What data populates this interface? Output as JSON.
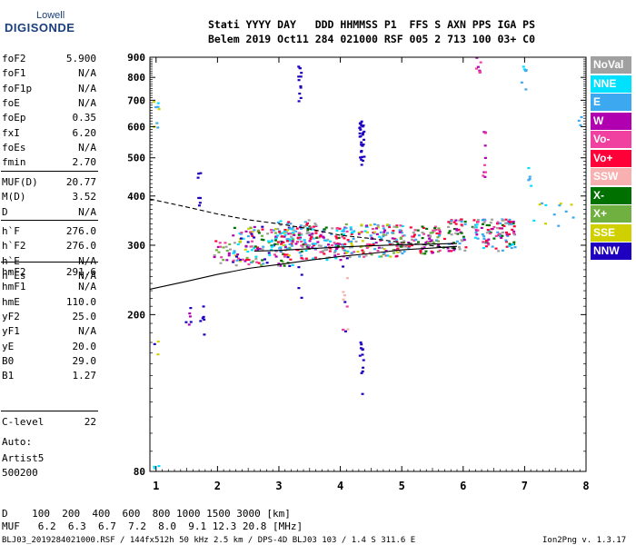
{
  "logo": {
    "line1": "Lowell",
    "line2": "DIGISONDE"
  },
  "header": {
    "line1": "Stati YYYY DAY   DDD HHMMSS P1  FFS S AXN PPS IGA PS",
    "line2": "Belem 2019 Oct11 284 021000 RSF 005 2 713 100 03+ C0"
  },
  "params_group1": [
    {
      "name": "foF2",
      "value": "5.900"
    },
    {
      "name": "foF1",
      "value": "N/A"
    },
    {
      "name": "foF1p",
      "value": "N/A"
    },
    {
      "name": "foE",
      "value": "N/A"
    },
    {
      "name": "foEp",
      "value": "0.35"
    },
    {
      "name": "fxI",
      "value": "6.20"
    },
    {
      "name": "foEs",
      "value": "N/A"
    },
    {
      "name": "fmin",
      "value": "2.70"
    }
  ],
  "params_group2": [
    {
      "name": "MUF(D)",
      "value": "20.77"
    },
    {
      "name": "M(D)",
      "value": "3.52"
    },
    {
      "name": "D",
      "value": "N/A"
    }
  ],
  "params_group3": [
    {
      "name": "h`F",
      "value": "276.0"
    },
    {
      "name": "h`F2",
      "value": "276.0"
    },
    {
      "name": "h`E",
      "value": "N/A"
    },
    {
      "name": "h`Es",
      "value": "N/A"
    }
  ],
  "params_group4": [
    {
      "name": "hmF2",
      "value": "291.6"
    },
    {
      "name": "hmF1",
      "value": "N/A"
    },
    {
      "name": "hmE",
      "value": "110.0"
    },
    {
      "name": "yF2",
      "value": "25.0"
    },
    {
      "name": "yF1",
      "value": "N/A"
    },
    {
      "name": "yE",
      "value": "20.0"
    },
    {
      "name": "B0",
      "value": "29.0"
    },
    {
      "name": "B1",
      "value": "1.27"
    }
  ],
  "params_group5": [
    {
      "name": "C-level",
      "value": "22"
    }
  ],
  "auto_block": {
    "line1": "Auto:",
    "line2": "Artist5",
    "line3": "500200"
  },
  "legend": [
    {
      "label": "NoVal",
      "color": "#a0a0a0"
    },
    {
      "label": "NNE",
      "color": "#00e0ff"
    },
    {
      "label": "E",
      "color": "#3ca8f0"
    },
    {
      "label": "W",
      "color": "#b000b0"
    },
    {
      "label": "Vo-",
      "color": "#f040a0"
    },
    {
      "label": "Vo+",
      "color": "#ff0038"
    },
    {
      "label": "SSW",
      "color": "#f8b0b0"
    },
    {
      "label": "X-",
      "color": "#007000"
    },
    {
      "label": "X+",
      "color": "#70b040"
    },
    {
      "label": "SSE",
      "color": "#d0d000"
    },
    {
      "label": "NNW",
      "color": "#2000c0"
    }
  ],
  "footer": {
    "d_row": "D    100  200  400  600  800 1000 1500 3000 [km]",
    "muf_row": "MUF   6.2  6.3  6.7  7.2  8.0  9.1 12.3 20.8 [MHz]",
    "file_line": "BLJ03_2019284021000.RSF / 144fx512h 50 kHz 2.5 km / DPS-4D BLJ03 103 / 1.4 S 311.6 E",
    "version": "Ion2Png v. 1.3.17"
  },
  "chart_data": {
    "type": "scatter",
    "title": "",
    "xlabel": "",
    "ylabel": "",
    "xlim": [
      0.9,
      8.0
    ],
    "ylim": [
      80,
      900
    ],
    "y_scale": "log",
    "x_ticks": [
      1,
      2,
      3,
      4,
      5,
      6,
      7,
      8
    ],
    "y_ticks": [
      80,
      200,
      300,
      400,
      500,
      600,
      700,
      800,
      900
    ],
    "grid": false,
    "legend_position": "right",
    "curves": [
      {
        "name": "",
        "style": "dashed",
        "x": [
          0.9,
          1.5,
          2.0,
          2.5,
          3.0,
          3.5,
          4.0,
          4.5,
          5.0,
          5.5,
          5.9
        ],
        "y": [
          393,
          375,
          360,
          348,
          340,
          330,
          318,
          312,
          305,
          299,
          294
        ]
      },
      {
        "name": "",
        "style": "solid",
        "x": [
          0.9,
          1.5,
          2.0,
          2.5,
          3.0,
          3.5,
          4.0,
          4.5,
          5.0,
          5.5,
          5.9
        ],
        "y": [
          232,
          243,
          253,
          262,
          268,
          275,
          281,
          286,
          292,
          295,
          298
        ]
      },
      {
        "name": "",
        "style": "solid",
        "x": [
          2.6,
          3.0,
          3.5,
          4.0,
          4.5,
          5.0,
          5.5,
          5.9
        ],
        "y": [
          290,
          291,
          294,
          297,
          299,
          301,
          302,
          303
        ]
      }
    ],
    "echo_clusters": [
      {
        "cx": 1.0,
        "cy": 640,
        "w": 0.05,
        "h": 70,
        "colors": [
          "NNE",
          "E",
          "SSE"
        ],
        "n": 8
      },
      {
        "cx": 1.0,
        "cy": 175,
        "w": 0.05,
        "h": 25,
        "colors": [
          "SSE",
          "NNW"
        ],
        "n": 3
      },
      {
        "cx": 1.0,
        "cy": 83,
        "w": 0.05,
        "h": 6,
        "colors": [
          "SSE",
          "NNE"
        ],
        "n": 3
      },
      {
        "cx": 1.7,
        "cy": 390,
        "w": 0.03,
        "h": 14,
        "colors": [
          "NNW"
        ],
        "n": 4
      },
      {
        "cx": 1.7,
        "cy": 460,
        "w": 0.03,
        "h": 20,
        "colors": [
          "NNW"
        ],
        "n": 3
      },
      {
        "cx": 1.55,
        "cy": 200,
        "w": 0.06,
        "h": 20,
        "colors": [
          "NNW",
          "W"
        ],
        "n": 6
      },
      {
        "cx": 1.75,
        "cy": 190,
        "w": 0.04,
        "h": 20,
        "colors": [
          "NNW"
        ],
        "n": 6
      },
      {
        "cx": 2.1,
        "cy": 290,
        "w": 0.15,
        "h": 20,
        "colors": [
          "Vo+",
          "Vo-",
          "W",
          "NoVal",
          "X+"
        ],
        "n": 20
      },
      {
        "cx": 2.75,
        "cy": 300,
        "w": 0.5,
        "h": 35,
        "colors": [
          "Vo+",
          "Vo-",
          "W",
          "E",
          "NNE",
          "X-",
          "X+",
          "SSE",
          "NoVal",
          "NNW"
        ],
        "n": 160
      },
      {
        "cx": 3.3,
        "cy": 320,
        "w": 0.35,
        "h": 30,
        "colors": [
          "E",
          "NNE",
          "Vo+",
          "W",
          "NoVal"
        ],
        "n": 70
      },
      {
        "cx": 3.35,
        "cy": 780,
        "w": 0.03,
        "h": 130,
        "colors": [
          "NNW"
        ],
        "n": 12
      },
      {
        "cx": 3.35,
        "cy": 245,
        "w": 0.03,
        "h": 25,
        "colors": [
          "NNW"
        ],
        "n": 4
      },
      {
        "cx": 3.7,
        "cy": 305,
        "w": 0.4,
        "h": 30,
        "colors": [
          "Vo+",
          "Vo-",
          "E",
          "NNE",
          "W",
          "X-",
          "NoVal"
        ],
        "n": 120
      },
      {
        "cx": 4.08,
        "cy": 230,
        "w": 0.05,
        "h": 50,
        "colors": [
          "NNW",
          "SSW",
          "Vo-"
        ],
        "n": 12
      },
      {
        "cx": 4.35,
        "cy": 550,
        "w": 0.04,
        "h": 70,
        "colors": [
          "NNW"
        ],
        "n": 30
      },
      {
        "cx": 4.35,
        "cy": 150,
        "w": 0.03,
        "h": 25,
        "colors": [
          "NNW"
        ],
        "n": 12
      },
      {
        "cx": 4.55,
        "cy": 310,
        "w": 0.5,
        "h": 30,
        "colors": [
          "Vo+",
          "Vo-",
          "E",
          "NNE",
          "W",
          "X+",
          "SSE",
          "NoVal"
        ],
        "n": 140
      },
      {
        "cx": 5.3,
        "cy": 310,
        "w": 0.4,
        "h": 25,
        "colors": [
          "Vo+",
          "Vo-",
          "E",
          "W",
          "X-",
          "X+",
          "NoVal"
        ],
        "n": 90
      },
      {
        "cx": 5.9,
        "cy": 320,
        "w": 0.15,
        "h": 30,
        "colors": [
          "Vo+",
          "W",
          "E",
          "NoVal",
          "X-"
        ],
        "n": 50
      },
      {
        "cx": 6.25,
        "cy": 860,
        "w": 0.04,
        "h": 40,
        "colors": [
          "W",
          "Vo-"
        ],
        "n": 8
      },
      {
        "cx": 6.35,
        "cy": 520,
        "w": 0.03,
        "h": 80,
        "colors": [
          "Vo+",
          "Vo-",
          "W"
        ],
        "n": 10
      },
      {
        "cx": 6.5,
        "cy": 320,
        "w": 0.35,
        "h": 30,
        "colors": [
          "Vo+",
          "Vo-",
          "W",
          "E",
          "NNE",
          "X-",
          "NoVal"
        ],
        "n": 110
      },
      {
        "cx": 7.0,
        "cy": 800,
        "w": 0.05,
        "h": 60,
        "colors": [
          "NNE",
          "E"
        ],
        "n": 6
      },
      {
        "cx": 7.1,
        "cy": 450,
        "w": 0.05,
        "h": 40,
        "colors": [
          "NNE",
          "E"
        ],
        "n": 5
      },
      {
        "cx": 7.5,
        "cy": 360,
        "w": 0.35,
        "h": 25,
        "colors": [
          "E",
          "NNE",
          "SSE"
        ],
        "n": 12
      },
      {
        "cx": 7.9,
        "cy": 620,
        "w": 0.03,
        "h": 20,
        "colors": [
          "E"
        ],
        "n": 3
      }
    ]
  }
}
